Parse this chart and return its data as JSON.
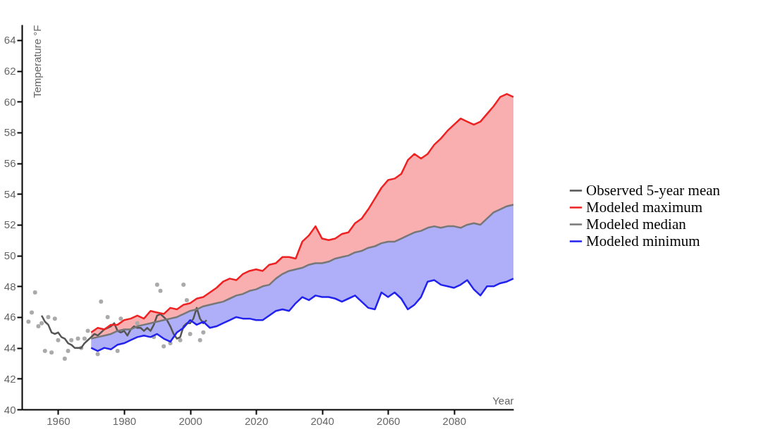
{
  "chart_data": {
    "type": "line",
    "xlabel": "Year",
    "ylabel": "Temperature °F",
    "xlim": [
      1949,
      2098
    ],
    "xticks": [
      1960,
      1980,
      2000,
      2020,
      2040,
      2060,
      2080
    ],
    "ylim": [
      40,
      65
    ],
    "yticks": [
      40,
      42,
      44,
      46,
      48,
      50,
      52,
      54,
      56,
      58,
      60,
      62,
      64
    ],
    "grid": false,
    "legend": "right",
    "series": [
      {
        "type": "scatter",
        "color": "#aaaaaa",
        "x": [
          1951,
          1952,
          1953,
          1954,
          1955,
          1956,
          1957,
          1958,
          1959,
          1960,
          1962,
          1963,
          1964,
          1966,
          1967,
          1968,
          1969,
          1972,
          1973,
          1975,
          1978,
          1979,
          1984,
          1989,
          1990,
          1991,
          1992,
          1994,
          1997,
          1998,
          1999,
          2000,
          2003,
          2004
        ],
        "values": [
          45.7,
          46.3,
          47.6,
          45.4,
          45.6,
          43.8,
          46.0,
          43.7,
          45.9,
          44.5,
          43.3,
          43.8,
          44.5,
          44.6,
          44.0,
          44.6,
          45.1,
          43.6,
          47.0,
          46.0,
          43.8,
          45.9,
          45.6,
          44.7,
          48.1,
          47.7,
          44.1,
          44.3,
          44.5,
          48.1,
          47.1,
          44.9,
          44.5,
          45.0
        ]
      },
      {
        "name": "Observed 5-year mean",
        "color": "#555555",
        "x": [
          1955,
          1956,
          1957,
          1958,
          1959,
          1960,
          1961,
          1962,
          1963,
          1964,
          1965,
          1966,
          1967,
          1968,
          1969,
          1970,
          1971,
          1972,
          1973,
          1974,
          1975,
          1976,
          1977,
          1978,
          1979,
          1980,
          1981,
          1982,
          1983,
          1984,
          1985,
          1986,
          1987,
          1988,
          1989,
          1990,
          1991,
          1992,
          1993,
          1994,
          1995,
          1996,
          1997,
          1998,
          1999,
          2000,
          2001,
          2002,
          2003,
          2004,
          2005
        ],
        "values": [
          46.1,
          45.7,
          45.5,
          45.0,
          44.9,
          45.0,
          44.7,
          44.6,
          44.3,
          44.2,
          44.0,
          44.0,
          44.0,
          44.3,
          44.5,
          44.7,
          44.9,
          44.8,
          45.0,
          45.2,
          45.3,
          45.4,
          45.6,
          45.1,
          45.0,
          45.1,
          44.8,
          45.2,
          45.4,
          45.3,
          45.3,
          45.1,
          45.3,
          45.1,
          45.5,
          46.1,
          46.2,
          46.0,
          45.8,
          45.4,
          44.9,
          44.6,
          44.7,
          45.4,
          45.6,
          45.6,
          45.9,
          46.6,
          45.9,
          45.6,
          45.8
        ]
      },
      {
        "name": "Modeled maximum",
        "color": "#ee2222",
        "x": [
          1970,
          1972,
          1974,
          1976,
          1978,
          1980,
          1982,
          1984,
          1986,
          1988,
          1990,
          1992,
          1994,
          1996,
          1998,
          2000,
          2002,
          2004,
          2006,
          2008,
          2010,
          2012,
          2014,
          2016,
          2018,
          2020,
          2022,
          2024,
          2026,
          2028,
          2030,
          2032,
          2034,
          2036,
          2038,
          2040,
          2042,
          2044,
          2046,
          2048,
          2050,
          2052,
          2054,
          2056,
          2058,
          2060,
          2062,
          2064,
          2066,
          2068,
          2070,
          2072,
          2074,
          2076,
          2078,
          2080,
          2082,
          2084,
          2086,
          2088,
          2090,
          2092,
          2094,
          2096,
          2098
        ],
        "values": [
          45.0,
          45.3,
          45.2,
          45.5,
          45.5,
          45.8,
          45.9,
          46.1,
          45.9,
          46.4,
          46.3,
          46.2,
          46.6,
          46.5,
          46.8,
          46.9,
          47.2,
          47.3,
          47.6,
          47.9,
          48.3,
          48.5,
          48.4,
          48.8,
          49.0,
          49.1,
          49.0,
          49.4,
          49.5,
          49.9,
          49.9,
          49.8,
          50.9,
          51.3,
          51.9,
          51.1,
          51.0,
          51.1,
          51.4,
          51.5,
          52.1,
          52.4,
          53.0,
          53.7,
          54.4,
          54.9,
          55.0,
          55.3,
          56.2,
          56.6,
          56.3,
          56.6,
          57.2,
          57.6,
          58.1,
          58.5,
          58.9,
          58.7,
          58.5,
          58.7,
          59.2,
          59.7,
          60.3,
          60.5,
          60.3
        ],
        "upper": [
          45.0,
          45.3,
          45.2,
          45.5,
          45.5,
          45.8,
          45.9,
          46.1,
          45.9,
          46.4,
          46.3,
          46.2,
          46.6,
          46.5,
          46.8,
          46.9,
          47.2,
          47.3,
          47.6,
          47.9,
          48.3,
          48.5,
          48.4,
          48.8,
          49.0,
          49.1,
          49.0,
          49.4,
          49.5,
          49.9,
          49.9,
          49.8,
          50.9,
          51.3,
          51.9,
          51.1,
          51.0,
          51.1,
          51.4,
          51.5,
          52.1,
          52.4,
          53.0,
          53.7,
          54.4,
          54.9,
          55.0,
          55.3,
          56.2,
          56.6,
          56.3,
          56.6,
          57.2,
          57.6,
          58.1,
          58.5,
          58.9,
          58.7,
          58.5,
          58.7,
          59.2,
          59.7,
          60.3,
          60.5,
          60.3
        ],
        "lower": [
          44.6,
          44.7,
          44.8,
          44.9,
          45.1,
          45.2,
          45.2,
          45.4,
          45.5,
          45.6,
          45.7,
          45.8,
          45.9,
          46.0,
          46.2,
          46.4,
          46.5,
          46.7,
          46.8,
          46.9,
          47.0,
          47.2,
          47.4,
          47.5,
          47.7,
          47.8,
          48.0,
          48.1,
          48.5,
          48.8,
          49.0,
          49.1,
          49.2,
          49.4,
          49.5,
          49.5,
          49.6,
          49.8,
          49.9,
          50.0,
          50.2,
          50.3,
          50.5,
          50.6,
          50.8,
          50.9,
          50.9,
          51.1,
          51.3,
          51.5,
          51.6,
          51.8,
          51.9,
          51.8,
          51.9,
          51.9,
          51.8,
          52.0,
          52.1,
          52.0,
          52.4,
          52.8,
          53.0,
          53.2,
          53.3
        ]
      },
      {
        "name": "Modeled median",
        "color": "#777777",
        "x": [
          1970,
          1972,
          1974,
          1976,
          1978,
          1980,
          1982,
          1984,
          1986,
          1988,
          1990,
          1992,
          1994,
          1996,
          1998,
          2000,
          2002,
          2004,
          2006,
          2008,
          2010,
          2012,
          2014,
          2016,
          2018,
          2020,
          2022,
          2024,
          2026,
          2028,
          2030,
          2032,
          2034,
          2036,
          2038,
          2040,
          2042,
          2044,
          2046,
          2048,
          2050,
          2052,
          2054,
          2056,
          2058,
          2060,
          2062,
          2064,
          2066,
          2068,
          2070,
          2072,
          2074,
          2076,
          2078,
          2080,
          2082,
          2084,
          2086,
          2088,
          2090,
          2092,
          2094,
          2096,
          2098
        ],
        "values": [
          44.6,
          44.7,
          44.8,
          44.9,
          45.1,
          45.2,
          45.2,
          45.4,
          45.5,
          45.6,
          45.7,
          45.8,
          45.9,
          46.0,
          46.2,
          46.4,
          46.5,
          46.7,
          46.8,
          46.9,
          47.0,
          47.2,
          47.4,
          47.5,
          47.7,
          47.8,
          48.0,
          48.1,
          48.5,
          48.8,
          49.0,
          49.1,
          49.2,
          49.4,
          49.5,
          49.5,
          49.6,
          49.8,
          49.9,
          50.0,
          50.2,
          50.3,
          50.5,
          50.6,
          50.8,
          50.9,
          50.9,
          51.1,
          51.3,
          51.5,
          51.6,
          51.8,
          51.9,
          51.8,
          51.9,
          51.9,
          51.8,
          52.0,
          52.1,
          52.0,
          52.4,
          52.8,
          53.0,
          53.2,
          53.3
        ]
      },
      {
        "name": "Modeled minimum",
        "color": "#2222ee",
        "x": [
          1970,
          1972,
          1974,
          1976,
          1978,
          1980,
          1982,
          1984,
          1986,
          1988,
          1990,
          1992,
          1994,
          1996,
          1998,
          2000,
          2002,
          2004,
          2006,
          2008,
          2010,
          2012,
          2014,
          2016,
          2018,
          2020,
          2022,
          2024,
          2026,
          2028,
          2030,
          2032,
          2034,
          2036,
          2038,
          2040,
          2042,
          2044,
          2046,
          2048,
          2050,
          2052,
          2054,
          2056,
          2058,
          2060,
          2062,
          2064,
          2066,
          2068,
          2070,
          2072,
          2074,
          2076,
          2078,
          2080,
          2082,
          2084,
          2086,
          2088,
          2090,
          2092,
          2094,
          2096,
          2098
        ],
        "values": [
          44.0,
          43.8,
          44.0,
          43.9,
          44.2,
          44.3,
          44.5,
          44.7,
          44.8,
          44.7,
          44.9,
          44.6,
          44.4,
          45.0,
          45.3,
          45.8,
          45.5,
          45.7,
          45.3,
          45.4,
          45.6,
          45.8,
          46.0,
          45.9,
          45.9,
          45.8,
          45.8,
          46.1,
          46.4,
          46.5,
          46.4,
          46.9,
          47.3,
          47.1,
          47.4,
          47.3,
          47.3,
          47.2,
          47.0,
          47.2,
          47.4,
          47.0,
          46.6,
          46.5,
          47.6,
          47.3,
          47.6,
          47.2,
          46.5,
          46.8,
          47.3,
          48.3,
          48.4,
          48.1,
          48.0,
          47.9,
          48.1,
          48.4,
          47.8,
          47.4,
          48.0,
          48.0,
          48.2,
          48.3,
          48.5
        ],
        "lower": [
          44.0,
          43.8,
          44.0,
          43.9,
          44.2,
          44.3,
          44.5,
          44.7,
          44.8,
          44.7,
          44.9,
          44.6,
          44.4,
          45.0,
          45.3,
          45.8,
          45.5,
          45.7,
          45.3,
          45.4,
          45.6,
          45.8,
          46.0,
          45.9,
          45.9,
          45.8,
          45.8,
          46.1,
          46.4,
          46.5,
          46.4,
          46.9,
          47.3,
          47.1,
          47.4,
          47.3,
          47.3,
          47.2,
          47.0,
          47.2,
          47.4,
          47.0,
          46.6,
          46.5,
          47.6,
          47.3,
          47.6,
          47.2,
          46.5,
          46.8,
          47.3,
          48.3,
          48.4,
          48.1,
          48.0,
          47.9,
          48.1,
          48.4,
          47.8,
          47.4,
          48.0,
          48.0,
          48.2,
          48.3,
          48.5
        ],
        "upper": [
          44.6,
          44.7,
          44.8,
          44.9,
          45.1,
          45.2,
          45.2,
          45.4,
          45.5,
          45.6,
          45.7,
          45.8,
          45.9,
          46.0,
          46.2,
          46.4,
          46.5,
          46.7,
          46.8,
          46.9,
          47.0,
          47.2,
          47.4,
          47.5,
          47.7,
          47.8,
          48.0,
          48.1,
          48.5,
          48.8,
          49.0,
          49.1,
          49.2,
          49.4,
          49.5,
          49.5,
          49.6,
          49.8,
          49.9,
          50.0,
          50.2,
          50.3,
          50.5,
          50.6,
          50.8,
          50.9,
          50.9,
          51.1,
          51.3,
          51.5,
          51.6,
          51.8,
          51.9,
          51.8,
          51.9,
          51.9,
          51.8,
          52.0,
          52.1,
          52.0,
          52.4,
          52.8,
          53.0,
          53.2,
          53.3
        ]
      }
    ]
  }
}
